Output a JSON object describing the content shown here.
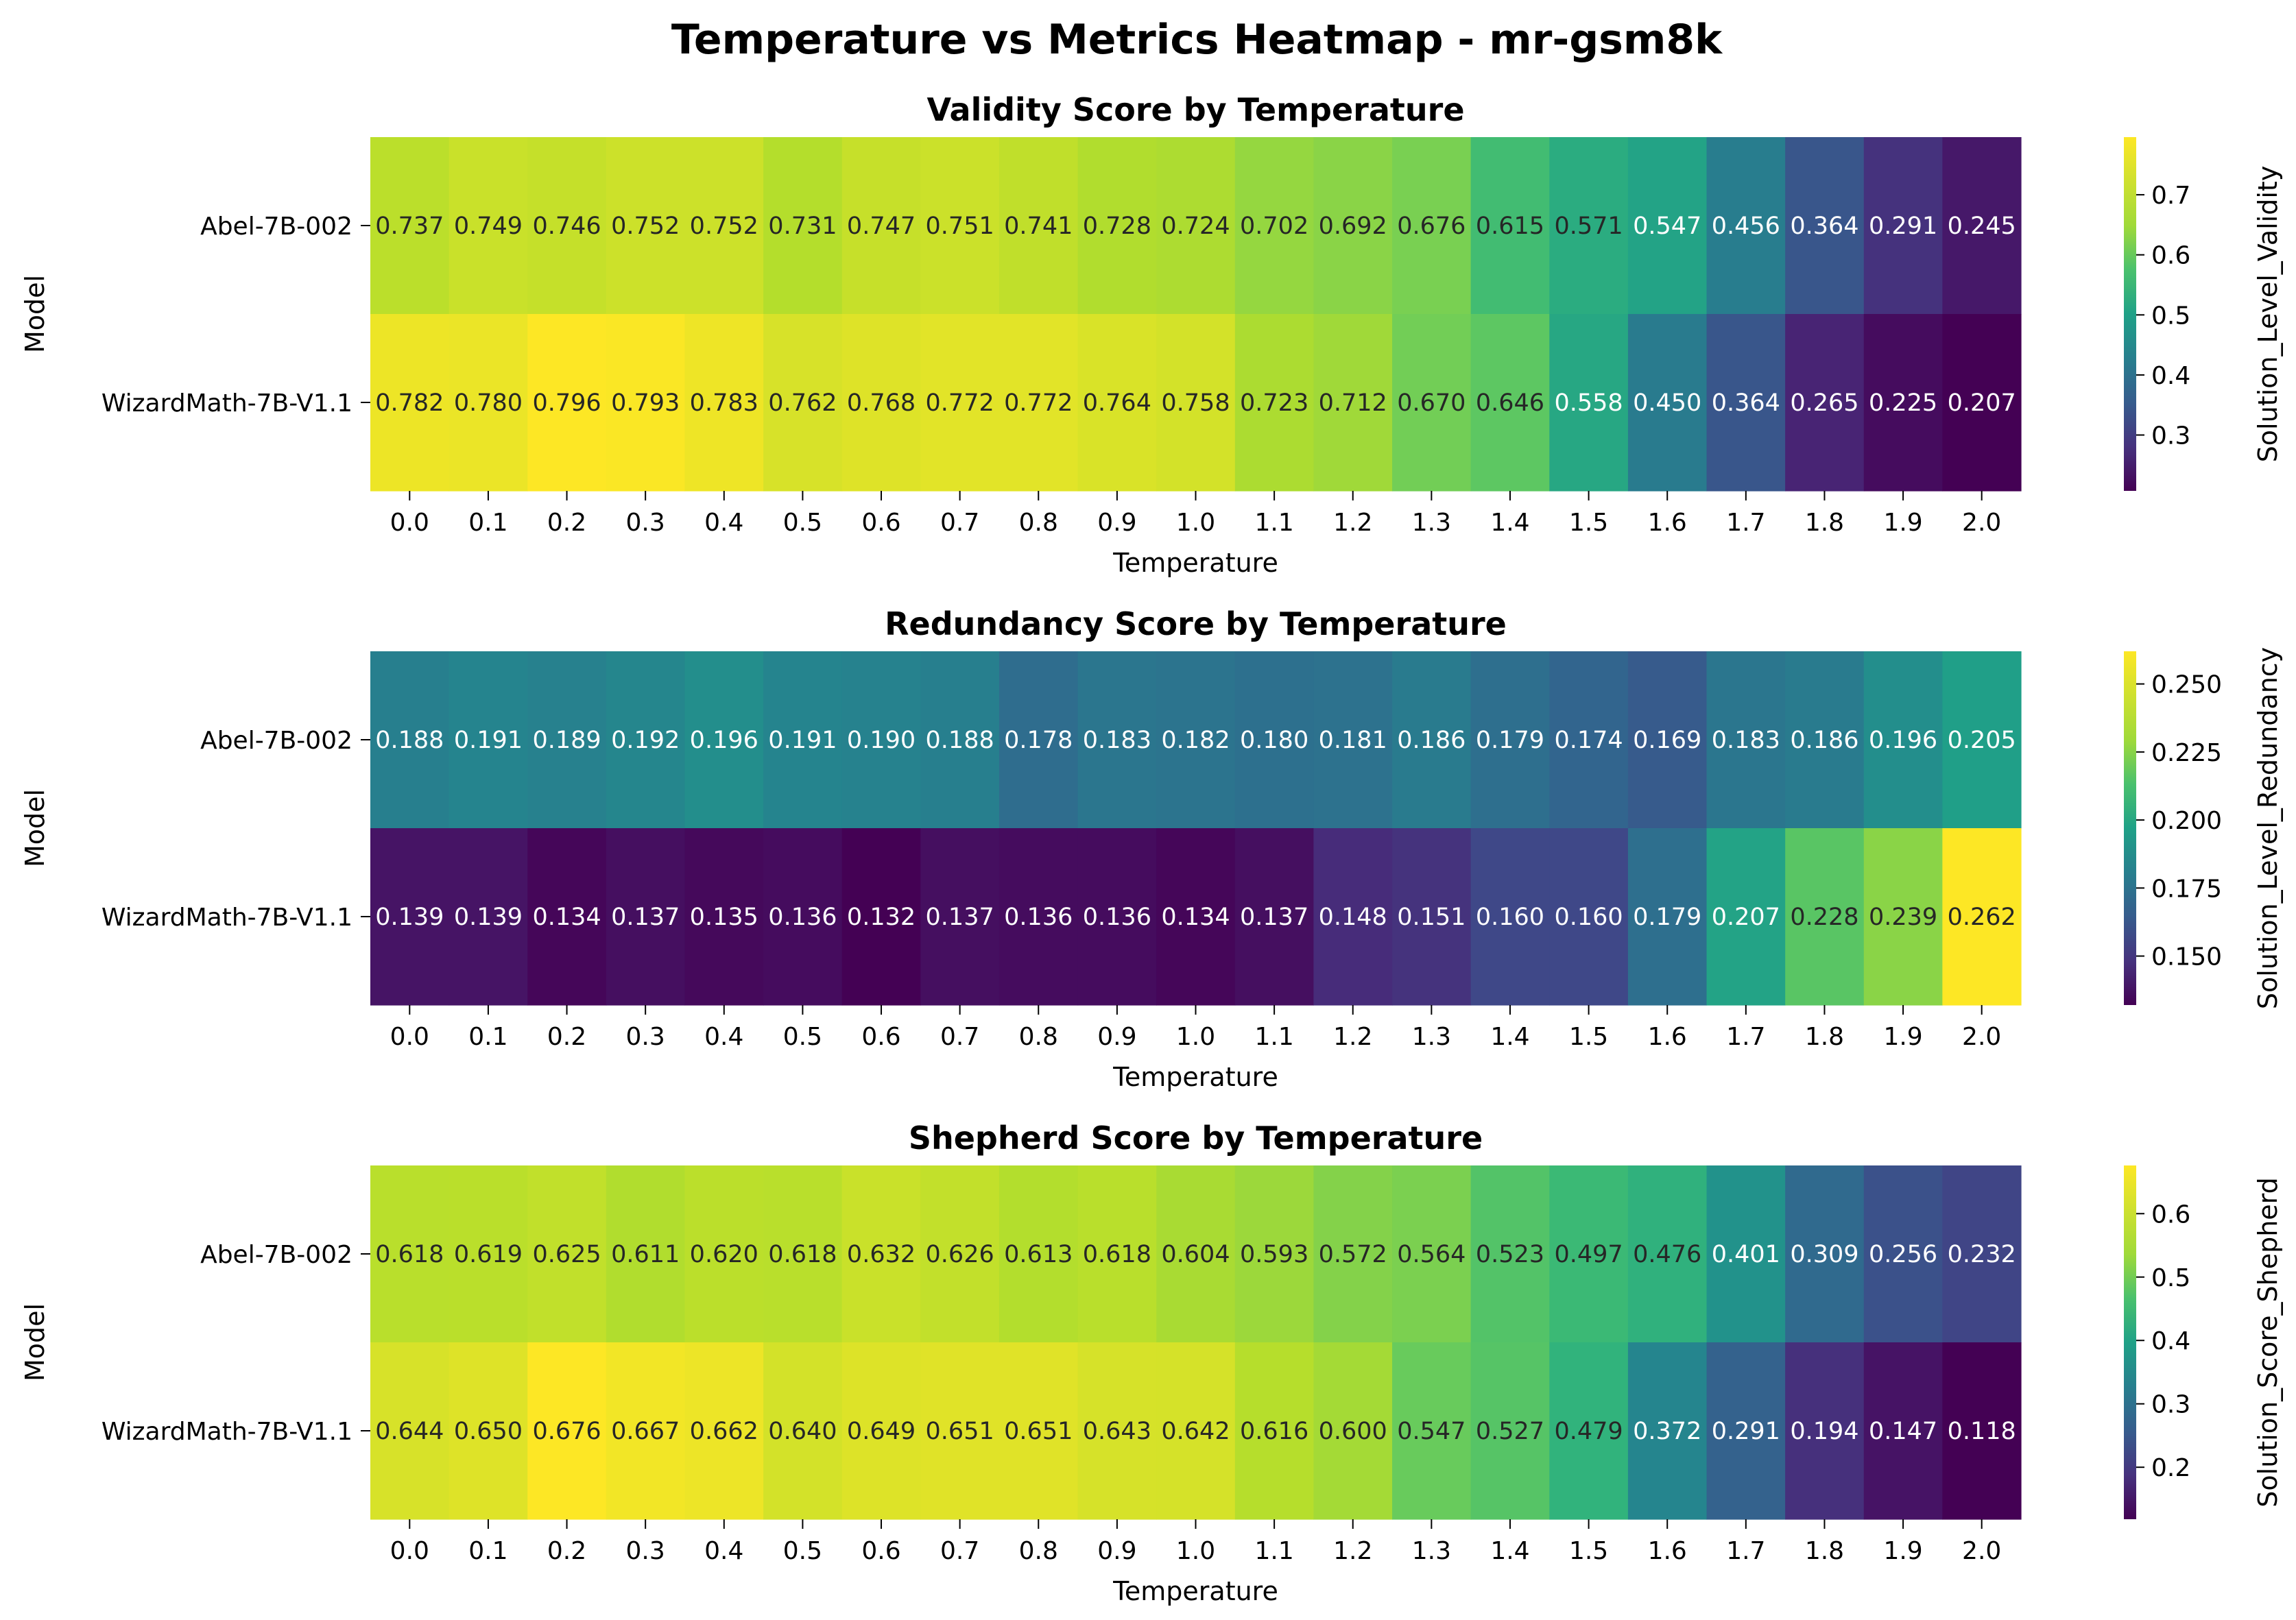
{
  "title": "Temperature vs Metrics Heatmap - mr-gsm8k",
  "chart_data": [
    {
      "type": "heatmap",
      "title": "Validity Score by Temperature",
      "xlabel": "Temperature",
      "ylabel": "Model",
      "colorbar_label": "Solution_Level_Validity",
      "colormap": "viridis",
      "x": [
        "0.0",
        "0.1",
        "0.2",
        "0.3",
        "0.4",
        "0.5",
        "0.6",
        "0.7",
        "0.8",
        "0.9",
        "1.0",
        "1.1",
        "1.2",
        "1.3",
        "1.4",
        "1.5",
        "1.6",
        "1.7",
        "1.8",
        "1.9",
        "2.0"
      ],
      "y": [
        "Abel-7B-002",
        "WizardMath-7B-V1.1"
      ],
      "values": [
        [
          0.737,
          0.749,
          0.746,
          0.752,
          0.752,
          0.731,
          0.747,
          0.751,
          0.741,
          0.728,
          0.724,
          0.702,
          0.692,
          0.676,
          0.615,
          0.571,
          0.547,
          0.456,
          0.364,
          0.291,
          0.245
        ],
        [
          0.782,
          0.78,
          0.796,
          0.793,
          0.783,
          0.762,
          0.768,
          0.772,
          0.772,
          0.764,
          0.758,
          0.723,
          0.712,
          0.67,
          0.646,
          0.558,
          0.45,
          0.364,
          0.265,
          0.225,
          0.207
        ]
      ],
      "vmin": 0.207,
      "vmax": 0.796,
      "colorbar_ticks": [
        "0.3",
        "0.4",
        "0.5",
        "0.6",
        "0.7"
      ]
    },
    {
      "type": "heatmap",
      "title": "Redundancy Score by Temperature",
      "xlabel": "Temperature",
      "ylabel": "Model",
      "colorbar_label": "Solution_Level_Redundancy",
      "colormap": "viridis",
      "x": [
        "0.0",
        "0.1",
        "0.2",
        "0.3",
        "0.4",
        "0.5",
        "0.6",
        "0.7",
        "0.8",
        "0.9",
        "1.0",
        "1.1",
        "1.2",
        "1.3",
        "1.4",
        "1.5",
        "1.6",
        "1.7",
        "1.8",
        "1.9",
        "2.0"
      ],
      "y": [
        "Abel-7B-002",
        "WizardMath-7B-V1.1"
      ],
      "values": [
        [
          0.188,
          0.191,
          0.189,
          0.192,
          0.196,
          0.191,
          0.19,
          0.188,
          0.178,
          0.183,
          0.182,
          0.18,
          0.181,
          0.186,
          0.179,
          0.174,
          0.169,
          0.183,
          0.186,
          0.196,
          0.205
        ],
        [
          0.139,
          0.139,
          0.134,
          0.137,
          0.135,
          0.136,
          0.132,
          0.137,
          0.136,
          0.136,
          0.134,
          0.137,
          0.148,
          0.151,
          0.16,
          0.16,
          0.179,
          0.207,
          0.228,
          0.239,
          0.262
        ]
      ],
      "vmin": 0.132,
      "vmax": 0.262,
      "colorbar_ticks": [
        "0.150",
        "0.175",
        "0.200",
        "0.225",
        "0.250"
      ]
    },
    {
      "type": "heatmap",
      "title": "Shepherd Score by Temperature",
      "xlabel": "Temperature",
      "ylabel": "Model",
      "colorbar_label": "Solution_Score_Shepherd",
      "colormap": "viridis",
      "x": [
        "0.0",
        "0.1",
        "0.2",
        "0.3",
        "0.4",
        "0.5",
        "0.6",
        "0.7",
        "0.8",
        "0.9",
        "1.0",
        "1.1",
        "1.2",
        "1.3",
        "1.4",
        "1.5",
        "1.6",
        "1.7",
        "1.8",
        "1.9",
        "2.0"
      ],
      "y": [
        "Abel-7B-002",
        "WizardMath-7B-V1.1"
      ],
      "values": [
        [
          0.618,
          0.619,
          0.625,
          0.611,
          0.62,
          0.618,
          0.632,
          0.626,
          0.613,
          0.618,
          0.604,
          0.593,
          0.572,
          0.564,
          0.523,
          0.497,
          0.476,
          0.401,
          0.309,
          0.256,
          0.232
        ],
        [
          0.644,
          0.65,
          0.676,
          0.667,
          0.662,
          0.64,
          0.649,
          0.651,
          0.651,
          0.643,
          0.642,
          0.616,
          0.6,
          0.547,
          0.527,
          0.479,
          0.372,
          0.291,
          0.194,
          0.147,
          0.118
        ]
      ],
      "vmin": 0.118,
      "vmax": 0.676,
      "colorbar_ticks": [
        "0.2",
        "0.3",
        "0.4",
        "0.5",
        "0.6"
      ]
    }
  ]
}
